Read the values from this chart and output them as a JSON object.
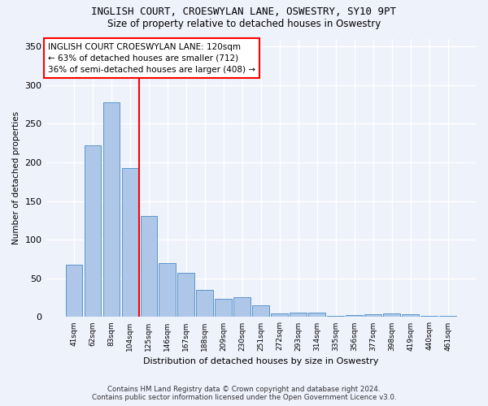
{
  "title": "INGLISH COURT, CROESWYLAN LANE, OSWESTRY, SY10 9PT",
  "subtitle": "Size of property relative to detached houses in Oswestry",
  "xlabel": "Distribution of detached houses by size in Oswestry",
  "ylabel": "Number of detached properties",
  "footer_line1": "Contains HM Land Registry data © Crown copyright and database right 2024.",
  "footer_line2": "Contains public sector information licensed under the Open Government Licence v3.0.",
  "categories": [
    "41sqm",
    "62sqm",
    "83sqm",
    "104sqm",
    "125sqm",
    "146sqm",
    "167sqm",
    "188sqm",
    "209sqm",
    "230sqm",
    "251sqm",
    "272sqm",
    "293sqm",
    "314sqm",
    "335sqm",
    "356sqm",
    "377sqm",
    "398sqm",
    "419sqm",
    "440sqm",
    "461sqm"
  ],
  "values": [
    68,
    222,
    278,
    193,
    131,
    70,
    57,
    35,
    24,
    26,
    15,
    5,
    6,
    6,
    2,
    3,
    4,
    5,
    4,
    2,
    2
  ],
  "bar_color": "#aec6e8",
  "bar_edge_color": "#5a96cc",
  "vline_color": "red",
  "annotation_text": "INGLISH COURT CROESWYLAN LANE: 120sqm\n← 63% of detached houses are smaller (712)\n36% of semi-detached houses are larger (408) →",
  "annotation_box_color": "white",
  "annotation_box_edge_color": "red",
  "ylim": [
    0,
    360
  ],
  "background_color": "#eef2fb",
  "grid_color": "#ffffff",
  "title_fontsize": 9,
  "subtitle_fontsize": 8.5
}
